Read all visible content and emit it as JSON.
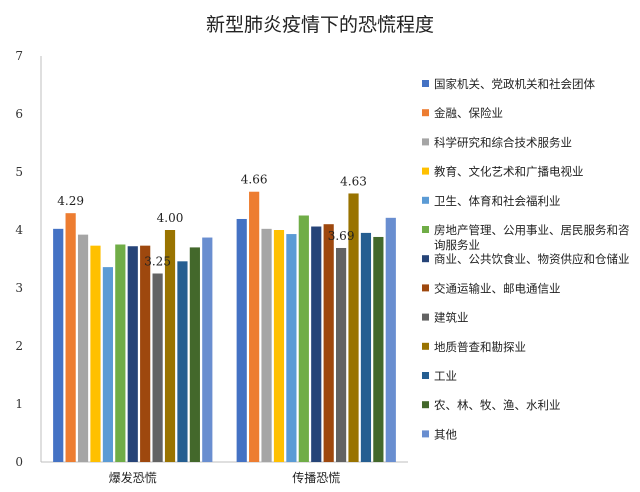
{
  "chart_data": {
    "type": "bar",
    "title": "新型肺炎疫情下的恐慌程度",
    "xlabel": "",
    "ylabel": "",
    "ylim": [
      0,
      7
    ],
    "yticks": [
      0,
      1,
      2,
      3,
      4,
      5,
      6,
      7
    ],
    "grid": false,
    "legend_position": "right",
    "categories": [
      "爆发恐慌",
      "传播恐慌"
    ],
    "series": [
      {
        "name": "国家机关、党政机关和社会团体",
        "color": "#4472c4",
        "values": [
          4.02,
          4.19
        ]
      },
      {
        "name": "金融、保险业",
        "color": "#ed7d31",
        "values": [
          4.29,
          4.66
        ]
      },
      {
        "name": "科学研究和综合技术服务业",
        "color": "#a5a5a5",
        "values": [
          3.92,
          4.02
        ]
      },
      {
        "name": "教育、文化艺术和广播电视业",
        "color": "#ffc000",
        "values": [
          3.73,
          4.0
        ]
      },
      {
        "name": "卫生、体育和社会福利业",
        "color": "#5b9bd5",
        "values": [
          3.36,
          3.93
        ]
      },
      {
        "name": "房地产管理、公用事业、居民服务和咨询服务业",
        "color": "#70ad47",
        "values": [
          3.75,
          4.25
        ]
      },
      {
        "name": "商业、公共饮食业、物资供应和仓储业",
        "color": "#264478",
        "values": [
          3.72,
          4.06
        ]
      },
      {
        "name": "交通运输业、邮电通信业",
        "color": "#9e480e",
        "values": [
          3.73,
          4.1
        ]
      },
      {
        "name": "建筑业",
        "color": "#636363",
        "values": [
          3.25,
          3.69
        ]
      },
      {
        "name": "地质普查和勘探业",
        "color": "#997300",
        "values": [
          4.0,
          4.63
        ]
      },
      {
        "name": "工业",
        "color": "#255e91",
        "values": [
          3.46,
          3.95
        ]
      },
      {
        "name": "农、林、牧、渔、水利业",
        "color": "#43682b",
        "values": [
          3.7,
          3.88
        ]
      },
      {
        "name": "其他",
        "color": "#698ed0",
        "values": [
          3.87,
          4.21
        ]
      }
    ],
    "data_labels": [
      {
        "category": "爆发恐慌",
        "series": "金融、保险业",
        "text": "4.29"
      },
      {
        "category": "爆发恐慌",
        "series": "建筑业",
        "text": "3.25"
      },
      {
        "category": "爆发恐慌",
        "series": "地质普查和勘探业",
        "text": "4.00"
      },
      {
        "category": "传播恐慌",
        "series": "金融、保险业",
        "text": "4.66"
      },
      {
        "category": "传播恐慌",
        "series": "建筑业",
        "text": "3.69"
      },
      {
        "category": "传播恐慌",
        "series": "地质普查和勘探业",
        "text": "4.63"
      }
    ]
  }
}
